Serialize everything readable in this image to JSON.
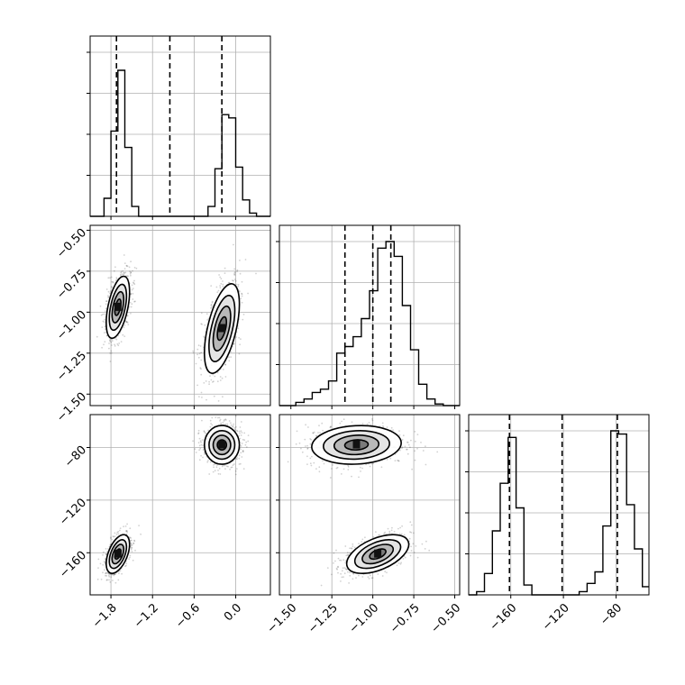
{
  "chart_data": {
    "type": "corner",
    "variables": [
      {
        "ticks": [
          "−1.8",
          "−1.2",
          "−0.6",
          "0.0"
        ],
        "tick_values": [
          -1.8,
          -1.2,
          -0.6,
          0.0
        ],
        "range": [
          -2.1,
          0.5
        ],
        "quantiles": [
          -1.72,
          -0.95,
          -0.2
        ]
      },
      {
        "ticks": [
          "−1.50",
          "−1.25",
          "−1.00",
          "−0.75",
          "−0.50"
        ],
        "tick_values": [
          -1.5,
          -1.25,
          -1.0,
          -0.75,
          -0.5
        ],
        "range": [
          -1.57,
          -0.47
        ],
        "quantiles": [
          -1.17,
          -1.0,
          -0.89
        ]
      },
      {
        "ticks": [
          "−160",
          "−120",
          "−80"
        ],
        "tick_values": [
          -160,
          -120,
          -80
        ],
        "range": [
          -192,
          -55
        ],
        "quantiles": [
          -161,
          -121,
          -79
        ]
      }
    ],
    "histograms": [
      {
        "bin_edges": [
          -2.1,
          -2.0,
          -1.9,
          -1.8,
          -1.7,
          -1.6,
          -1.5,
          -1.4,
          -1.3,
          -1.2,
          -1.1,
          -1.0,
          -0.9,
          -0.8,
          -0.7,
          -0.6,
          -0.5,
          -0.4,
          -0.3,
          -0.2,
          -0.1,
          0.0,
          0.1,
          0.2,
          0.3,
          0.4,
          0.5
        ],
        "counts": [
          0,
          0,
          0.11,
          0.52,
          0.89,
          0.42,
          0.06,
          0,
          0,
          0,
          0,
          0,
          0,
          0,
          0,
          0,
          0,
          0.06,
          0.29,
          0.62,
          0.6,
          0.3,
          0.1,
          0.02,
          0,
          0
        ]
      },
      {
        "bin_edges": [
          -1.57,
          -1.52,
          -1.47,
          -1.42,
          -1.37,
          -1.32,
          -1.27,
          -1.22,
          -1.17,
          -1.12,
          -1.07,
          -1.02,
          -0.97,
          -0.92,
          -0.87,
          -0.82,
          -0.77,
          -0.72,
          -0.67,
          -0.62,
          -0.57,
          -0.52,
          -0.47
        ],
        "counts": [
          0,
          0,
          0.02,
          0.04,
          0.08,
          0.1,
          0.15,
          0.32,
          0.36,
          0.42,
          0.53,
          0.7,
          0.96,
          1.0,
          0.91,
          0.61,
          0.34,
          0.13,
          0.04,
          0.01,
          0,
          0
        ]
      },
      {
        "bin_edges": [
          -192,
          -186,
          -180,
          -174,
          -168,
          -162,
          -156,
          -150,
          -144,
          -138,
          -132,
          -126,
          -120,
          -114,
          -108,
          -102,
          -96,
          -90,
          -84,
          -78,
          -72,
          -66,
          -60,
          -55
        ],
        "counts": [
          0,
          0.02,
          0.13,
          0.39,
          0.68,
          0.96,
          0.53,
          0.06,
          0,
          0,
          0,
          0,
          0,
          0,
          0.02,
          0.07,
          0.14,
          0.42,
          1.0,
          0.98,
          0.55,
          0.28,
          0.05
        ]
      }
    ],
    "clusters": [
      {
        "center": [
          -1.7,
          -0.97,
          -161
        ],
        "spread": [
          0.08,
          0.09,
          7
        ],
        "corr": {
          "0-1": 0.5,
          "0-2": 0.5,
          "1-2": 0.5
        }
      },
      {
        "center": [
          -0.2,
          -1.1,
          -78
        ],
        "spread": [
          0.12,
          0.13,
          7
        ],
        "corr": {
          "0-1": 0.55,
          "0-2": 0.0,
          "1-2": 0.1
        }
      }
    ],
    "grid": true,
    "title": "",
    "xlabel": "",
    "ylabel": ""
  }
}
